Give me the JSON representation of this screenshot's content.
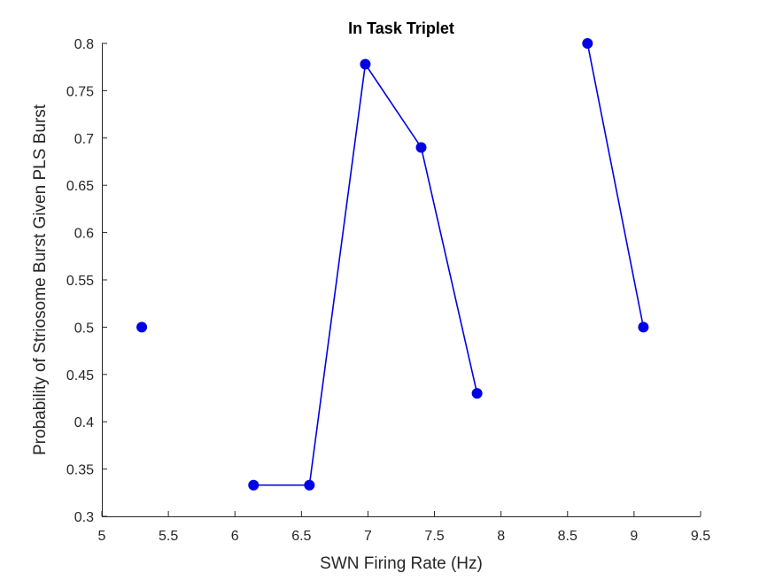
{
  "chart_data": {
    "type": "line",
    "title": "In Task Triplet",
    "xlabel": "SWN Firing Rate (Hz)",
    "ylabel": "Probability of Striosome Burst Given PLS Burst",
    "xlim": [
      5,
      9.5
    ],
    "ylim": [
      0.3,
      0.8
    ],
    "xticks": [
      "5",
      "5.5",
      "6",
      "6.5",
      "7",
      "7.5",
      "8",
      "8.5",
      "9",
      "9.5"
    ],
    "yticks": [
      "0.3",
      "0.35",
      "0.4",
      "0.45",
      "0.5",
      "0.55",
      "0.6",
      "0.65",
      "0.7",
      "0.75",
      "0.8"
    ],
    "grid": false,
    "legend": "none",
    "series_color": "#0000e6",
    "series": [
      {
        "segments": [
          [
            [
              5.3,
              0.5
            ]
          ],
          [
            [
              6.14,
              0.333
            ],
            [
              6.56,
              0.333
            ],
            [
              6.98,
              0.778
            ],
            [
              7.4,
              0.69
            ],
            [
              7.82,
              0.43
            ]
          ],
          [
            [
              8.65,
              0.8
            ],
            [
              9.07,
              0.5
            ]
          ]
        ]
      }
    ]
  }
}
